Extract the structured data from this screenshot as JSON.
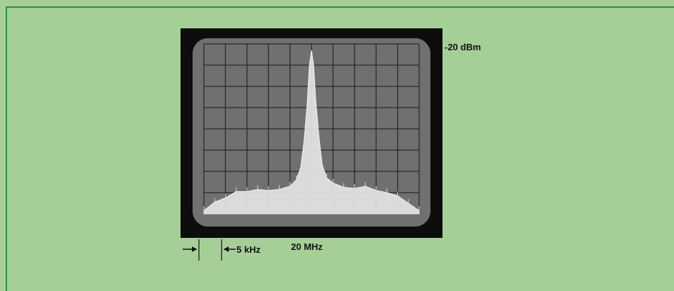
{
  "chart_data": {
    "type": "line",
    "title": "",
    "reference_level_label": "-20 dBm",
    "center_frequency_label": "20 MHz",
    "span_per_division_label": "5 kHz",
    "x_divisions": 10,
    "y_divisions": 8,
    "x": [
      -5,
      -4.5,
      -4,
      -3.5,
      -3,
      -2.5,
      -2,
      -1.5,
      -1,
      -0.7,
      -0.5,
      -0.35,
      -0.2,
      -0.1,
      0,
      0.1,
      0.2,
      0.35,
      0.5,
      0.7,
      1,
      1.5,
      2,
      2.5,
      3,
      3.5,
      4,
      4.5,
      5
    ],
    "series": [
      {
        "values": [
          0.15,
          0.55,
          0.75,
          1.05,
          1.05,
          1.15,
          1.1,
          1.15,
          1.3,
          1.6,
          2.2,
          3.4,
          5.2,
          7.0,
          7.7,
          7.0,
          5.3,
          3.6,
          2.3,
          1.7,
          1.45,
          1.25,
          1.2,
          1.3,
          1.1,
          1.0,
          0.85,
          0.5,
          0.15
        ]
      }
    ],
    "ylim": [
      0,
      8
    ],
    "grid": true
  }
}
